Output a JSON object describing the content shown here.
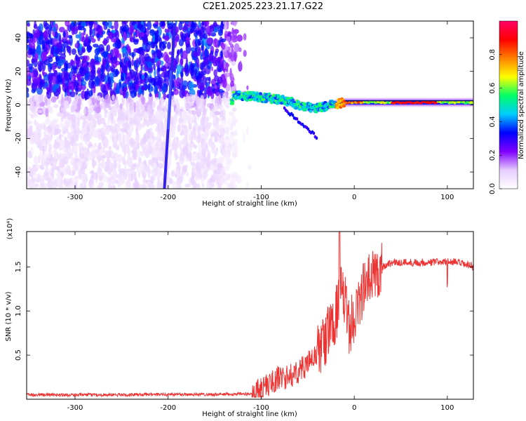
{
  "page": {
    "title": "C2E1.2025.223.21.17.G22"
  },
  "chart_data": [
    {
      "type": "heatmap",
      "xlabel": "Height of straight line (km)",
      "ylabel": "Frequency (Hz)",
      "xlim": [
        -352,
        128
      ],
      "ylim": [
        -50,
        50
      ],
      "xticks": [
        -300,
        -200,
        -100,
        0,
        100
      ],
      "xtick_labels": [
        "-300",
        "-200",
        "-100",
        "0",
        "100"
      ],
      "yticks": [
        -40,
        -20,
        0,
        20,
        40
      ],
      "ytick_labels": [
        "-40",
        "-20",
        "0",
        "20",
        "40"
      ],
      "colorbar": {
        "label": "Normalized spectral amplitude",
        "range": [
          0.0,
          1.0
        ],
        "ticks": [
          0.0,
          0.2,
          0.4,
          0.6,
          0.8
        ],
        "tick_labels": [
          "0.0",
          "0.2",
          "0.4",
          "0.6",
          "0.8"
        ],
        "colors": [
          "#ffffff",
          "#e6ccff",
          "#8000ff",
          "#0000ff",
          "#00ccff",
          "#00ff66",
          "#ffff00",
          "#ff8000",
          "#ff0000",
          "#ff0066"
        ]
      },
      "features": {
        "noise_region_km": [
          -352,
          -128
        ],
        "noise_frequency_hz": [
          -50,
          50
        ],
        "doppler_track": [
          [
            -130,
            6
          ],
          [
            -110,
            5
          ],
          [
            -90,
            4
          ],
          [
            -70,
            2
          ],
          [
            -55,
            -1
          ],
          [
            -40,
            -2
          ],
          [
            -25,
            0
          ],
          [
            -10,
            1.5
          ],
          [
            20,
            1.5
          ],
          [
            60,
            1.5
          ],
          [
            100,
            1.5
          ],
          [
            128,
            1.5
          ]
        ],
        "track_peak_amplitude": 0.95,
        "diagonal_streaks": [
          {
            "from": [
              -204,
              -50
            ],
            "to": [
              -193,
              48
            ]
          },
          {
            "from": [
              -200,
              -14
            ],
            "to": [
              -197,
              20
            ]
          }
        ]
      }
    },
    {
      "type": "line",
      "xlabel": "Height of straight line (km)",
      "ylabel": "SNR (10 * v/v)",
      "y_multiplier_label": "(x10⁴)",
      "xlim": [
        -352,
        128
      ],
      "ylim": [
        0,
        19000
      ],
      "xticks": [
        -300,
        -200,
        -100,
        0,
        100
      ],
      "xtick_labels": [
        "-300",
        "-200",
        "-100",
        "0",
        "100"
      ],
      "yticks": [
        5000,
        10000,
        15000
      ],
      "ytick_labels": [
        "0.5",
        "1.0",
        "1.5"
      ],
      "series": [
        {
          "color": "#ee3333",
          "x": [
            -352,
            -300,
            -250,
            -200,
            -150,
            -110,
            -100,
            -90,
            -80,
            -70,
            -60,
            -50,
            -40,
            -30,
            -20,
            -15,
            -10,
            -5,
            0,
            10,
            20,
            30,
            40,
            60,
            80,
            100,
            110,
            128
          ],
          "y": [
            500,
            500,
            500,
            550,
            550,
            600,
            1200,
            1800,
            2500,
            2500,
            3200,
            4000,
            5200,
            7000,
            9500,
            12000,
            11000,
            8000,
            9500,
            12500,
            14000,
            15000,
            15500,
            15500,
            15500,
            15600,
            15500,
            15000
          ]
        }
      ],
      "annotations": [
        {
          "x": -15,
          "y": 19000,
          "text": ""
        },
        {
          "x": 100,
          "y": 12500,
          "text": ""
        }
      ]
    }
  ]
}
